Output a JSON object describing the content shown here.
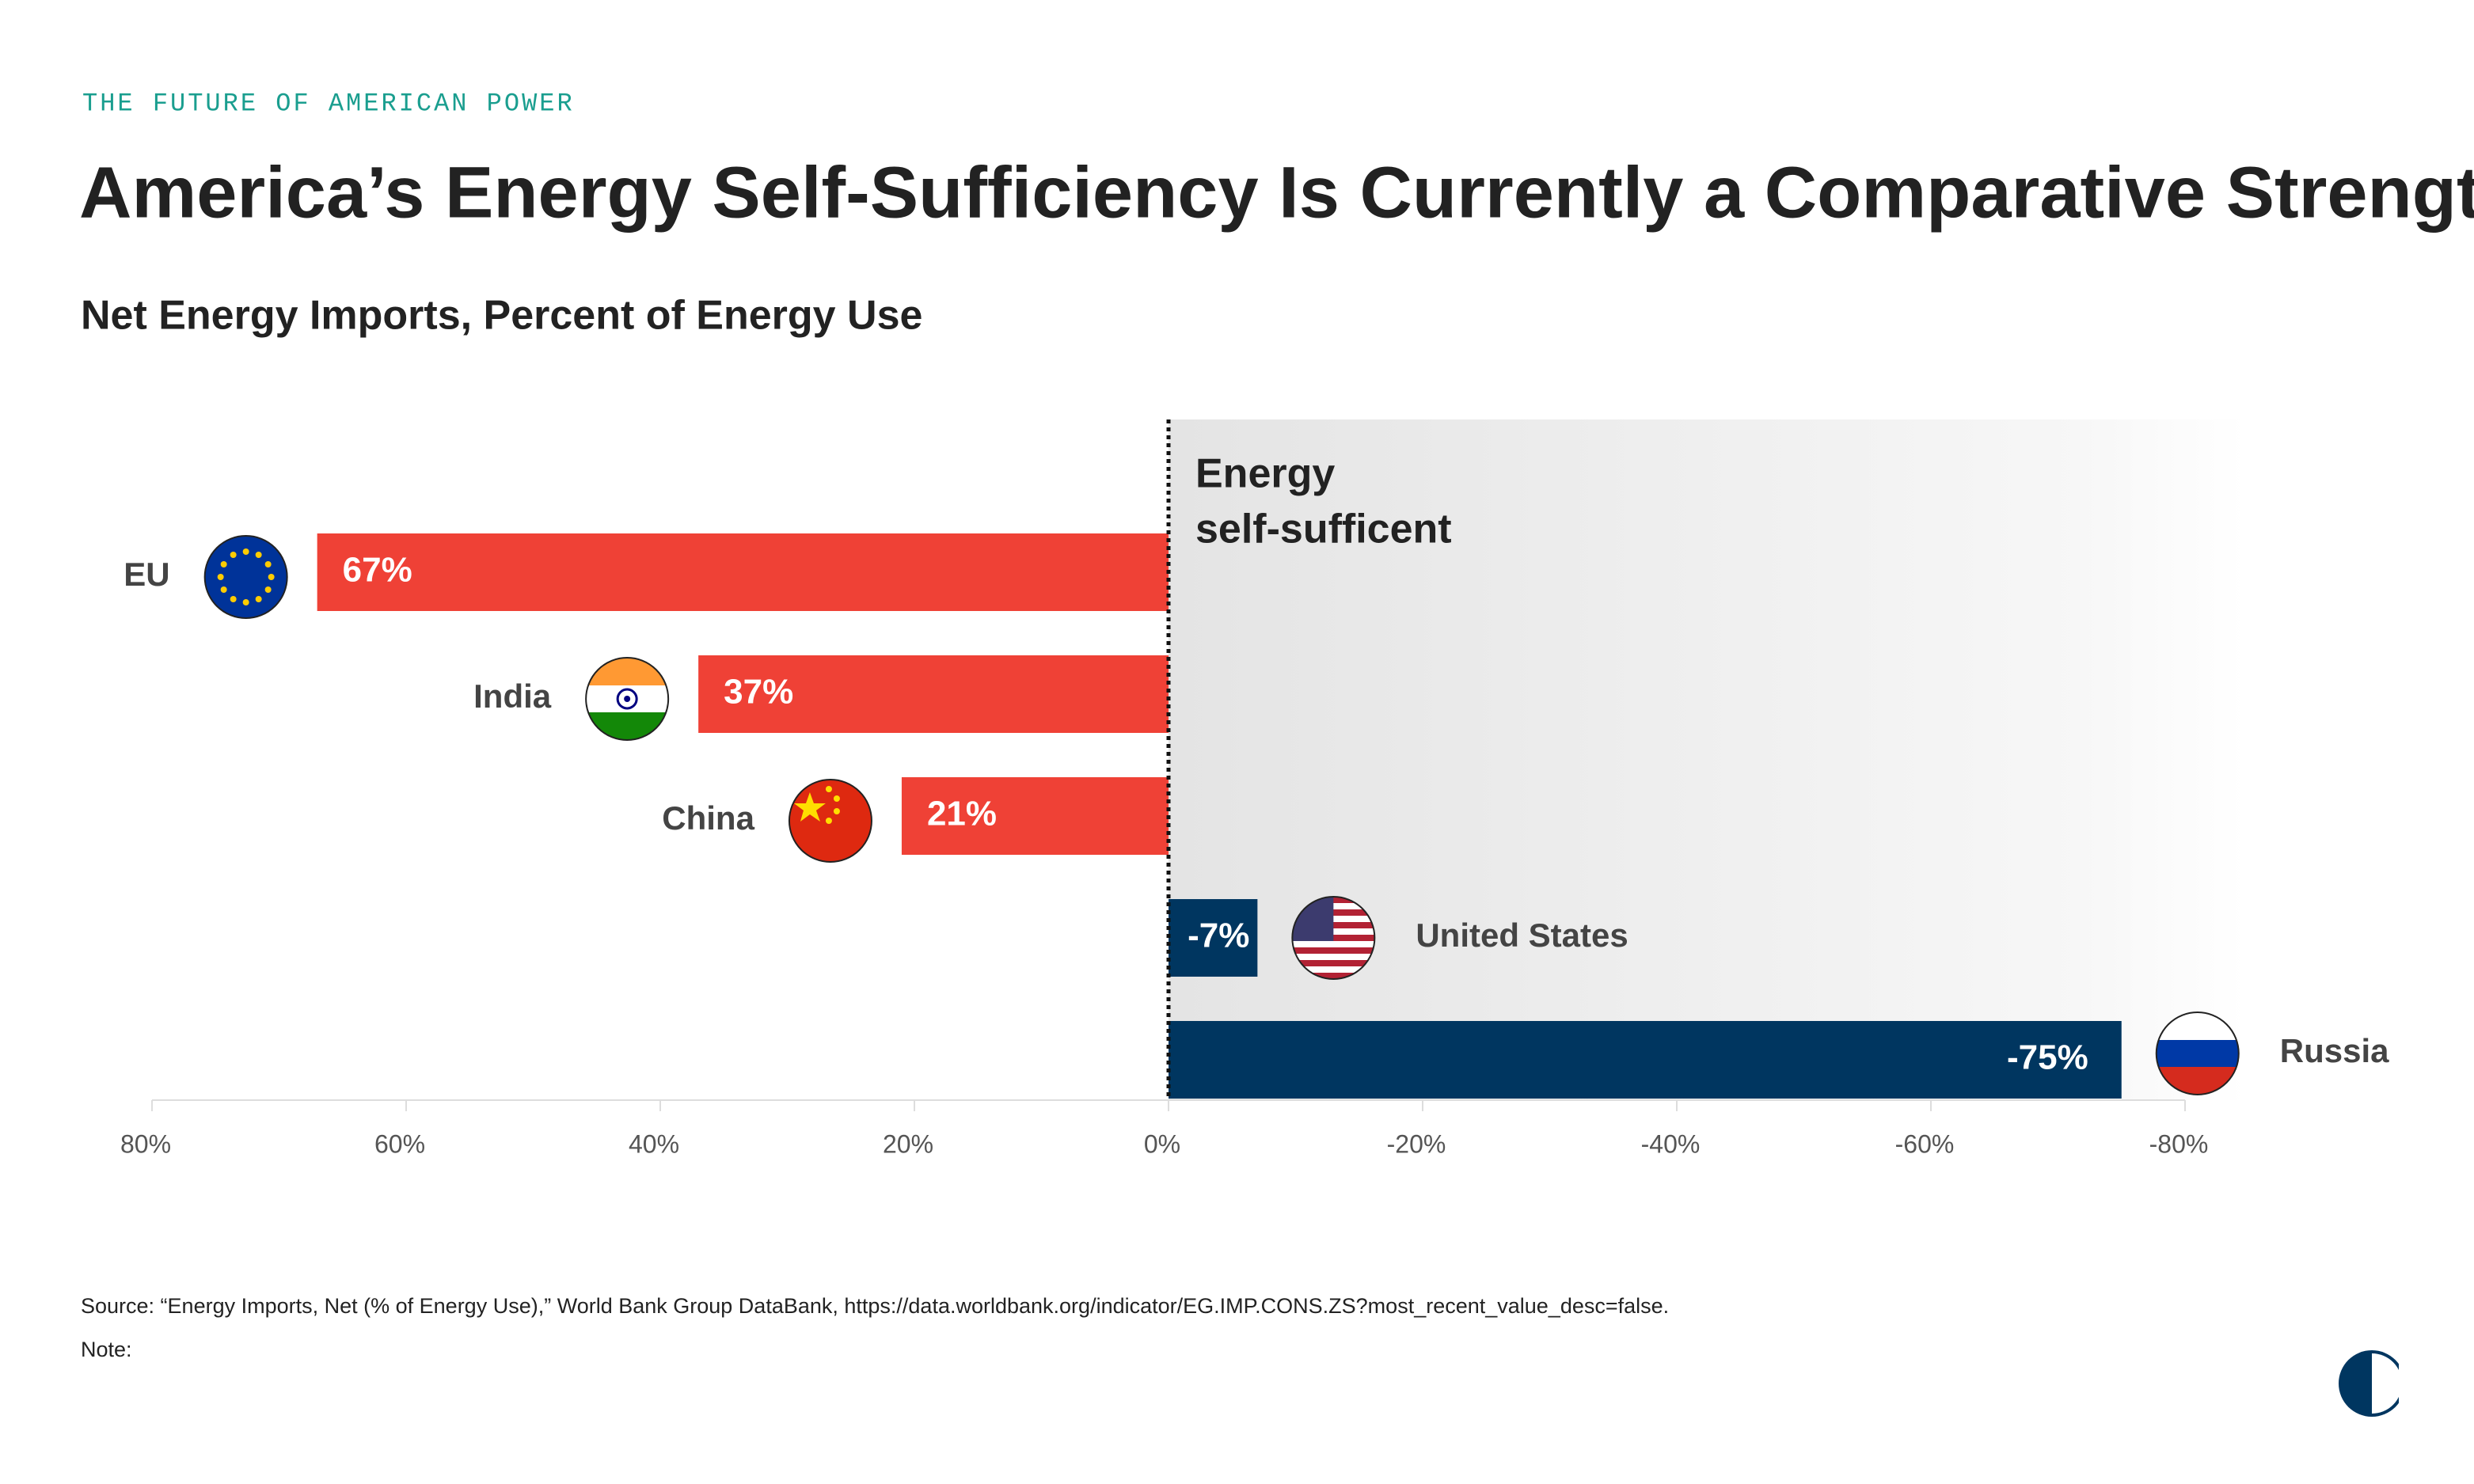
{
  "chart_data": {
    "type": "bar",
    "orientation": "horizontal",
    "kicker": "THE FUTURE OF AMERICAN POWER",
    "title": "America’s Energy Self-Sufficiency Is Currently a Comparative Strength",
    "subtitle": "Net Energy Imports, Percent of Energy Use",
    "annotation": [
      "Energy",
      "self-sufficent"
    ],
    "categories": [
      "EU",
      "India",
      "China",
      "United States",
      "Russia"
    ],
    "values": [
      67,
      37,
      21,
      -7,
      -75
    ],
    "value_labels": [
      "67%",
      "37%",
      "21%",
      "-7%",
      "-75%"
    ],
    "colors": [
      "#ef4136",
      "#ef4136",
      "#ef4136",
      "#003660",
      "#003660"
    ],
    "xlim": [
      80,
      -80
    ],
    "xticks": [
      {
        "value": 80,
        "label": "80%"
      },
      {
        "value": 60,
        "label": "60%"
      },
      {
        "value": 40,
        "label": "40%"
      },
      {
        "value": 20,
        "label": "20%"
      },
      {
        "value": 0,
        "label": "0%"
      },
      {
        "value": -20,
        "label": "-20%"
      },
      {
        "value": -40,
        "label": "-40%"
      },
      {
        "value": -60,
        "label": "-60%"
      },
      {
        "value": -80,
        "label": "-80%"
      }
    ],
    "source": "Source: “Energy Imports, Net (% of Energy Use),” World Bank Group DataBank, https://data.worldbank.org/indicator/EG.IMP.CONS.ZS?most_recent_value_desc=false.",
    "note": "Note:"
  }
}
